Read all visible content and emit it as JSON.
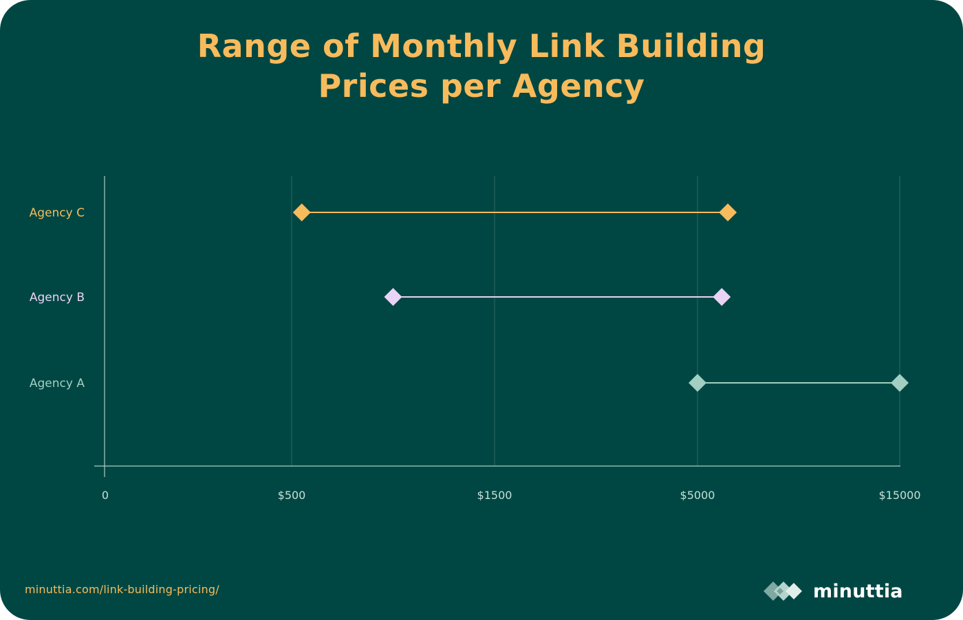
{
  "title_lines": [
    "Range of Monthly Link Building",
    "Prices per Agency"
  ],
  "footer_url": "minuttia.com/link-building-pricing/",
  "brand_name": "minuttia",
  "brand_icon": "diamond-cluster-logo",
  "colors": {
    "background": "#004743",
    "title": "#F8BB5C",
    "axis": "#A9CFC5",
    "grid": "#2E6761",
    "tick_label": "#C5E0D8"
  },
  "chart_data": {
    "type": "dumbbell",
    "title": "Range of Monthly Link Building Prices per Agency",
    "x_ticks": [
      "0",
      "$500",
      "$1500",
      "$5000",
      "$15000"
    ],
    "x_tick_values": [
      0,
      500,
      1500,
      5000,
      15000
    ],
    "x_scale": "categorical-step (non-linear)",
    "grid": "vertical lines at ticks",
    "series": [
      {
        "name": "Agency C",
        "min": 550,
        "max": 6500,
        "color": "#F8BB5C",
        "label_color": "#F8BB5C"
      },
      {
        "name": "Agency B",
        "min": 1000,
        "max": 6200,
        "color": "#E9D4F6",
        "label_color": "#E9D4F6"
      },
      {
        "name": "Agency A",
        "min": 5000,
        "max": 15000,
        "color": "#A2CFC2",
        "label_color": "#A2CFC2"
      }
    ]
  }
}
